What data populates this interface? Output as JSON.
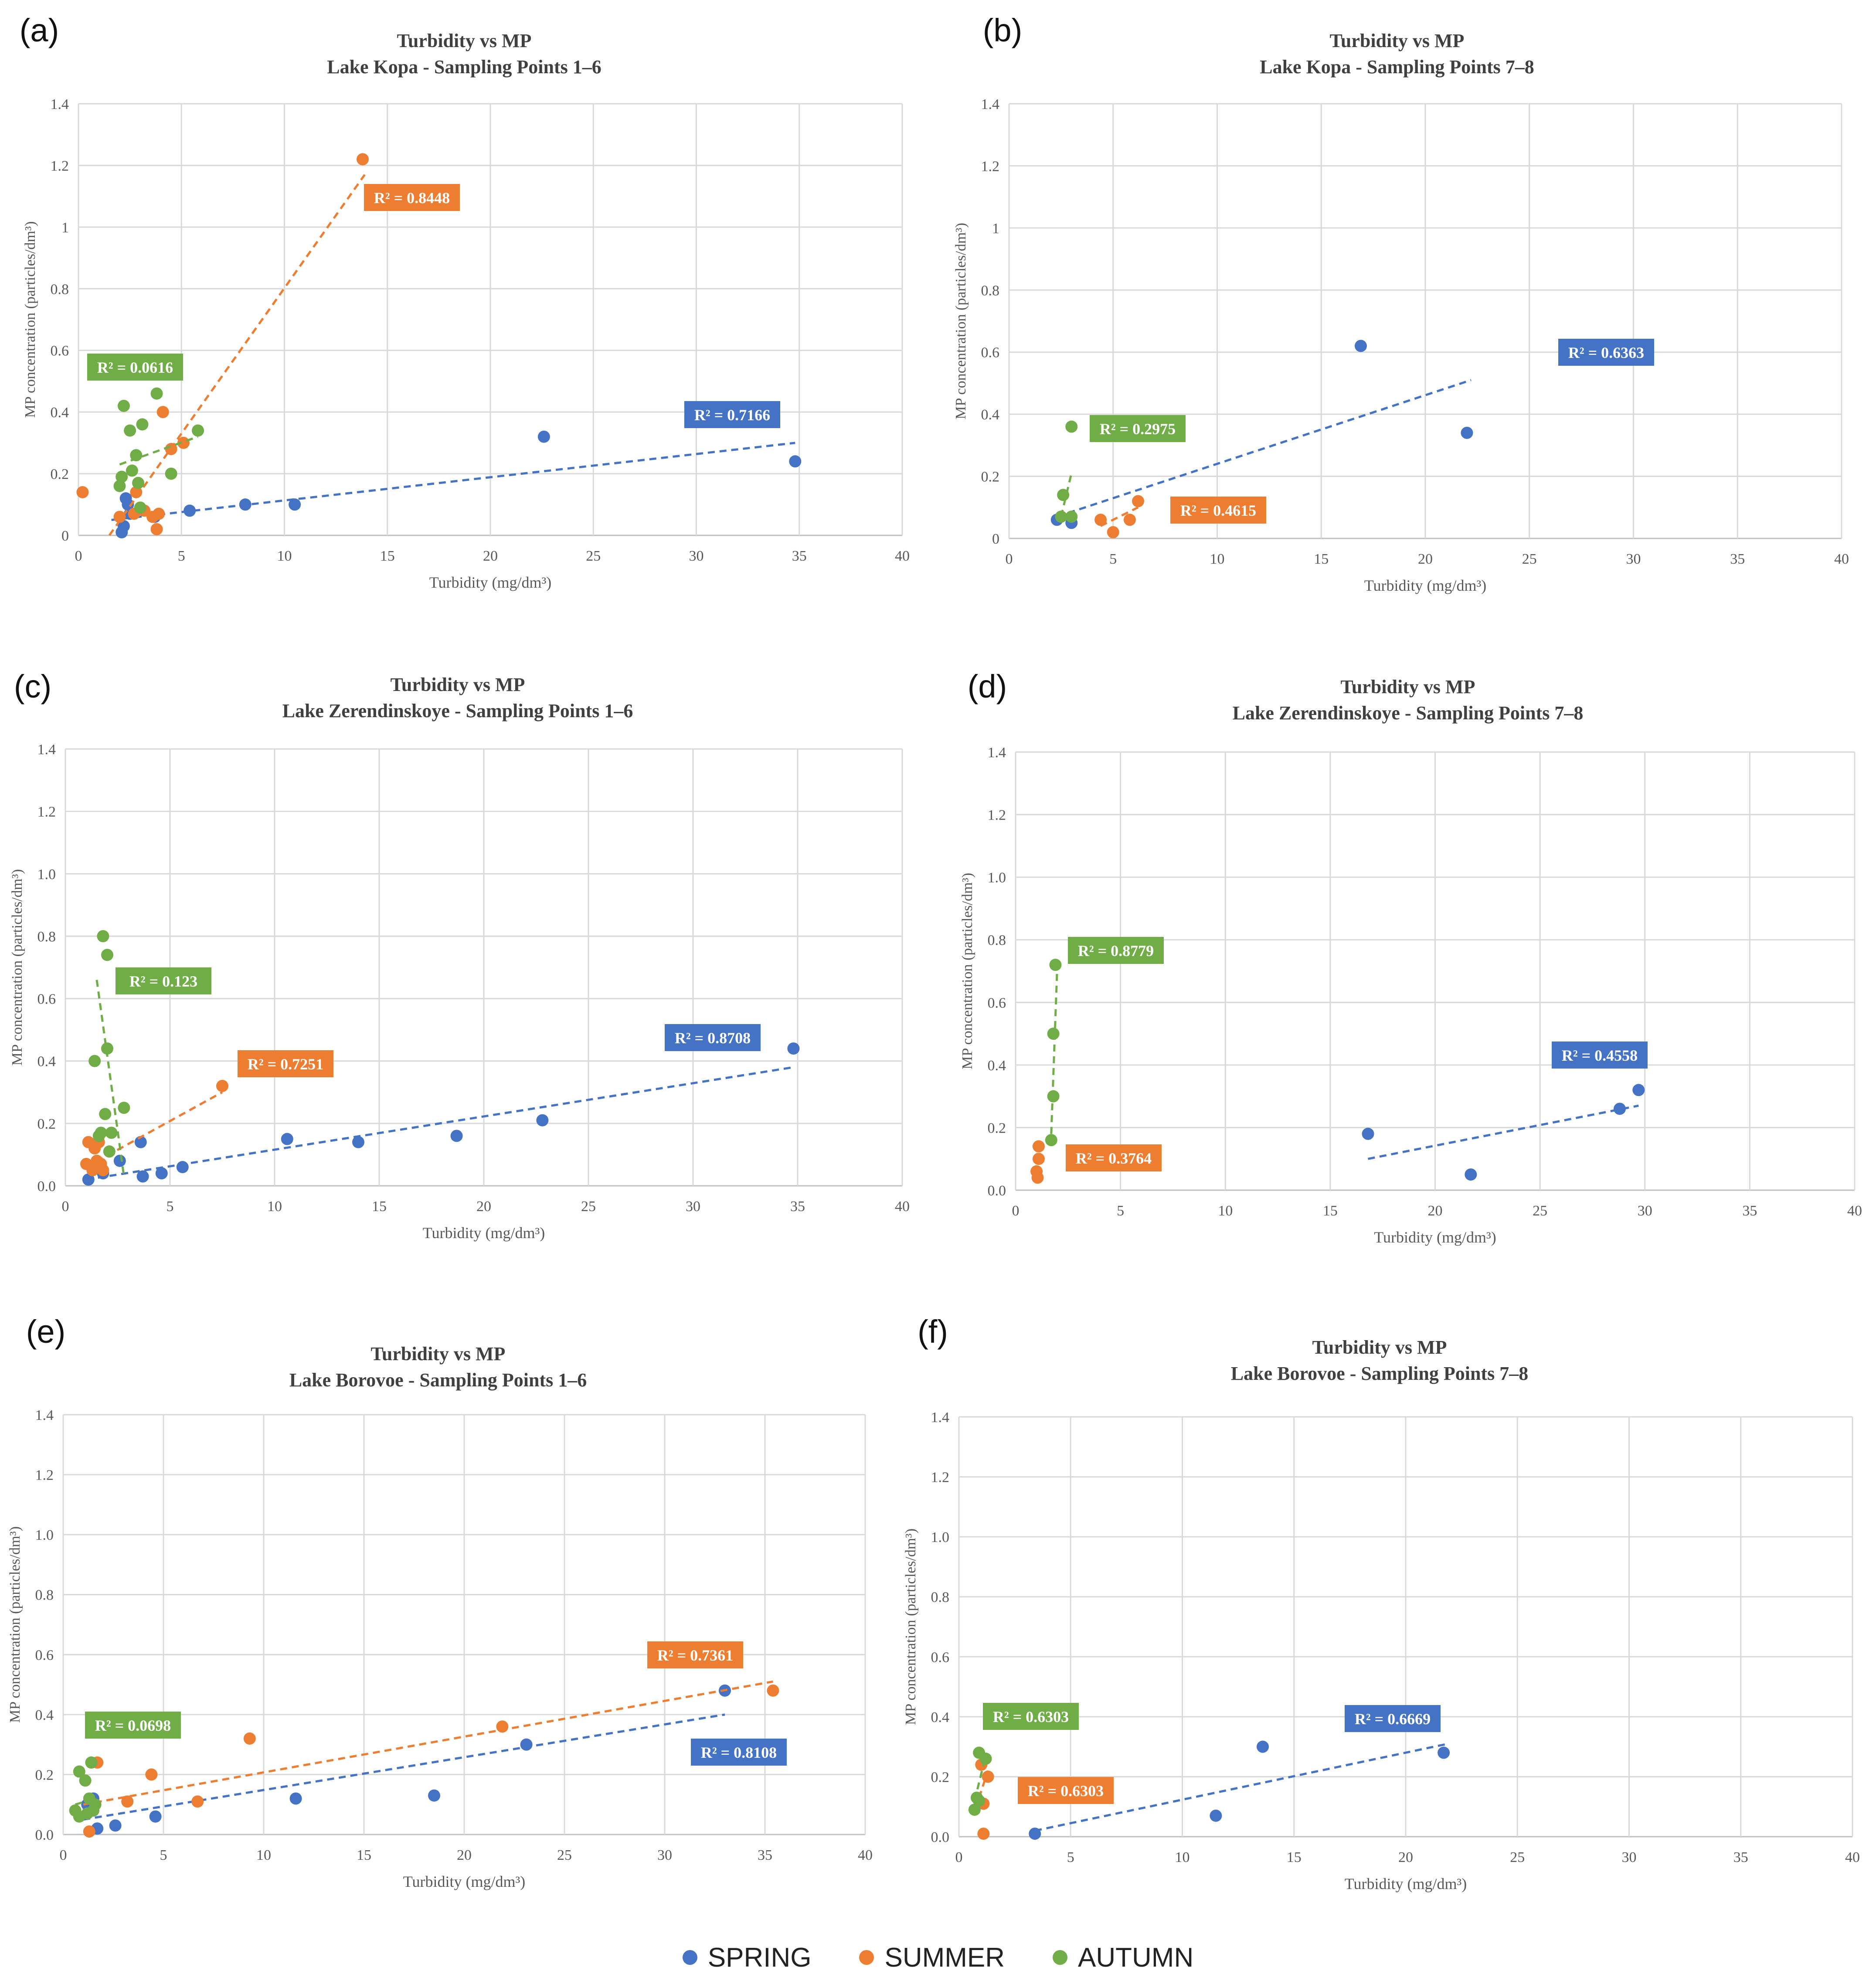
{
  "figure": {
    "legend": [
      {
        "label": "SPRING",
        "color": "#4472C4"
      },
      {
        "label": "SUMMER",
        "color": "#ED7D31"
      },
      {
        "label": "AUTUMN",
        "color": "#70AD47"
      }
    ]
  },
  "chart_data": [
    {
      "type": "scatter",
      "panel_label": "(a)",
      "title": "Turbidity vs MP",
      "subtitle": "Lake Kopa - Sampling Points 1–6",
      "xlabel": "Turbidity (mg/dm³)",
      "ylabel": "MP concentration (particles/dm³)",
      "xlim": [
        0,
        40
      ],
      "ylim": [
        0,
        1.4
      ],
      "xticks": [
        "0",
        "5",
        "10",
        "15",
        "20",
        "25",
        "30",
        "35",
        "40"
      ],
      "yticks": [
        "0",
        "0.2",
        "0.4",
        "0.6",
        "0.8",
        "1",
        "1.2",
        "1.4"
      ],
      "series": [
        {
          "name": "SPRING",
          "color": "#4472C4",
          "points": [
            [
              2.1,
              0.01
            ],
            [
              2.2,
              0.03
            ],
            [
              2.3,
              0.12
            ],
            [
              2.4,
              0.1
            ],
            [
              2.5,
              0.07
            ],
            [
              3.7,
              0.06
            ],
            [
              5.4,
              0.08
            ],
            [
              8.1,
              0.1
            ],
            [
              10.5,
              0.1
            ],
            [
              22.6,
              0.32
            ],
            [
              34.8,
              0.24
            ]
          ],
          "trend": {
            "x1": 1.6,
            "y1": 0.05,
            "x2": 34.8,
            "y2": 0.3
          },
          "r2": "R² = 0.7166"
        },
        {
          "name": "SUMMER",
          "color": "#ED7D31",
          "points": [
            [
              0.2,
              0.14
            ],
            [
              2.0,
              0.06
            ],
            [
              2.7,
              0.07
            ],
            [
              2.8,
              0.14
            ],
            [
              3.2,
              0.08
            ],
            [
              3.6,
              0.06
            ],
            [
              3.8,
              0.02
            ],
            [
              3.9,
              0.07
            ],
            [
              4.1,
              0.4
            ],
            [
              4.5,
              0.28
            ],
            [
              5.1,
              0.3
            ],
            [
              13.8,
              1.22
            ]
          ],
          "trend": {
            "x1": 1.5,
            "y1": 0.0,
            "x2": 13.9,
            "y2": 1.17
          },
          "r2": "R² = 0.8448"
        },
        {
          "name": "AUTUMN",
          "color": "#70AD47",
          "points": [
            [
              2.0,
              0.16
            ],
            [
              2.1,
              0.19
            ],
            [
              2.2,
              0.42
            ],
            [
              2.5,
              0.34
            ],
            [
              2.6,
              0.21
            ],
            [
              2.8,
              0.26
            ],
            [
              2.9,
              0.17
            ],
            [
              3.0,
              0.09
            ],
            [
              3.1,
              0.36
            ],
            [
              3.8,
              0.46
            ],
            [
              4.5,
              0.2
            ],
            [
              5.8,
              0.34
            ]
          ],
          "trend": {
            "x1": 2.0,
            "y1": 0.23,
            "x2": 5.8,
            "y2": 0.32
          },
          "r2": "R² = 0.0616"
        }
      ]
    },
    {
      "type": "scatter",
      "panel_label": "(b)",
      "title": "Turbidity vs MP",
      "subtitle": "Lake Kopa - Sampling Points 7–8",
      "xlabel": "Turbidity (mg/dm³)",
      "ylabel": "MP concentration (particles/dm³)",
      "xlim": [
        0,
        40
      ],
      "ylim": [
        0,
        1.4
      ],
      "xticks": [
        "0",
        "5",
        "10",
        "15",
        "20",
        "25",
        "30",
        "35",
        "40"
      ],
      "yticks": [
        "0",
        "0.2",
        "0.4",
        "0.6",
        "0.8",
        "1",
        "1.2",
        "1.4"
      ],
      "series": [
        {
          "name": "SPRING",
          "color": "#4472C4",
          "points": [
            [
              2.3,
              0.06
            ],
            [
              3.0,
              0.05
            ],
            [
              16.9,
              0.62
            ],
            [
              22.0,
              0.34
            ]
          ],
          "trend": {
            "x1": 2.3,
            "y1": 0.07,
            "x2": 22.2,
            "y2": 0.51
          },
          "r2": "R² = 0.6363"
        },
        {
          "name": "SUMMER",
          "color": "#ED7D31",
          "points": [
            [
              4.4,
              0.06
            ],
            [
              5.0,
              0.02
            ],
            [
              5.8,
              0.06
            ],
            [
              6.2,
              0.12
            ]
          ],
          "trend": {
            "x1": 4.4,
            "y1": 0.04,
            "x2": 6.2,
            "y2": 0.1
          },
          "r2": "R² = 0.4615"
        },
        {
          "name": "AUTUMN",
          "color": "#70AD47",
          "points": [
            [
              2.5,
              0.07
            ],
            [
              2.6,
              0.14
            ],
            [
              3.0,
              0.07
            ],
            [
              3.0,
              0.36
            ]
          ],
          "trend": {
            "x1": 2.5,
            "y1": 0.07,
            "x2": 3.0,
            "y2": 0.21
          },
          "r2": "R² = 0.2975"
        }
      ]
    },
    {
      "type": "scatter",
      "panel_label": "(c)",
      "title": "Turbidity vs MP",
      "subtitle": "Lake Zerendinskoye - Sampling Points 1–6",
      "xlabel": "Turbidity (mg/dm³)",
      "ylabel": "MP concentration (particles/dm³)",
      "xlim": [
        0,
        40
      ],
      "ylim": [
        0,
        1.4
      ],
      "xticks": [
        "0",
        "5",
        "10",
        "15",
        "20",
        "25",
        "30",
        "35",
        "40"
      ],
      "yticks": [
        "0.0",
        "0.2",
        "0.4",
        "0.6",
        "0.8",
        "1.0",
        "1.2",
        "1.4"
      ],
      "series": [
        {
          "name": "SPRING",
          "color": "#4472C4",
          "points": [
            [
              1.1,
              0.02
            ],
            [
              1.8,
              0.04
            ],
            [
              2.6,
              0.08
            ],
            [
              3.6,
              0.14
            ],
            [
              3.7,
              0.03
            ],
            [
              4.6,
              0.04
            ],
            [
              5.6,
              0.06
            ],
            [
              10.6,
              0.15
            ],
            [
              14.0,
              0.14
            ],
            [
              18.7,
              0.16
            ],
            [
              22.8,
              0.21
            ],
            [
              34.8,
              0.44
            ]
          ],
          "trend": {
            "x1": 1.0,
            "y1": 0.02,
            "x2": 34.8,
            "y2": 0.38
          },
          "r2": "R² = 0.8708"
        },
        {
          "name": "SUMMER",
          "color": "#ED7D31",
          "points": [
            [
              1.0,
              0.07
            ],
            [
              1.1,
              0.14
            ],
            [
              1.3,
              0.05
            ],
            [
              1.4,
              0.12
            ],
            [
              1.5,
              0.08
            ],
            [
              1.6,
              0.14
            ],
            [
              1.7,
              0.07
            ],
            [
              1.8,
              0.05
            ],
            [
              7.5,
              0.32
            ]
          ],
          "trend": {
            "x1": 1.0,
            "y1": 0.06,
            "x2": 7.5,
            "y2": 0.3
          },
          "r2": "R² = 0.7251"
        },
        {
          "name": "AUTUMN",
          "color": "#70AD47",
          "points": [
            [
              1.4,
              0.4
            ],
            [
              1.6,
              0.16
            ],
            [
              1.7,
              0.17
            ],
            [
              1.8,
              0.8
            ],
            [
              1.9,
              0.23
            ],
            [
              2.0,
              0.74
            ],
            [
              2.0,
              0.44
            ],
            [
              2.1,
              0.11
            ],
            [
              2.2,
              0.17
            ],
            [
              2.8,
              0.25
            ]
          ],
          "trend": {
            "x1": 1.5,
            "y1": 0.66,
            "x2": 2.8,
            "y2": 0.03
          },
          "r2": "R² = 0.123"
        }
      ]
    },
    {
      "type": "scatter",
      "panel_label": "(d)",
      "title": "Turbidity vs MP",
      "subtitle": "Lake Zerendinskoye - Sampling Points 7–8",
      "xlabel": "Turbidity (mg/dm³)",
      "ylabel": "MP concentration (particles/dm³)",
      "xlim": [
        0,
        40
      ],
      "ylim": [
        0,
        1.4
      ],
      "xticks": [
        "0",
        "5",
        "10",
        "15",
        "20",
        "25",
        "30",
        "35",
        "40"
      ],
      "yticks": [
        "0.0",
        "0.2",
        "0.4",
        "0.6",
        "0.8",
        "1.0",
        "1.2",
        "1.4"
      ],
      "series": [
        {
          "name": "SPRING",
          "color": "#4472C4",
          "points": [
            [
              16.8,
              0.18
            ],
            [
              21.7,
              0.05
            ],
            [
              28.8,
              0.26
            ],
            [
              29.7,
              0.32
            ]
          ],
          "trend": {
            "x1": 16.8,
            "y1": 0.1,
            "x2": 29.7,
            "y2": 0.27
          },
          "r2": "R² = 0.4558"
        },
        {
          "name": "SUMMER",
          "color": "#ED7D31",
          "points": [
            [
              1.0,
              0.06
            ],
            [
              1.05,
              0.04
            ],
            [
              1.1,
              0.1
            ],
            [
              1.1,
              0.14
            ]
          ],
          "trend": {
            "x1": 1.0,
            "y1": 0.05,
            "x2": 1.1,
            "y2": 0.12
          },
          "r2": "R² = 0.3764"
        },
        {
          "name": "AUTUMN",
          "color": "#70AD47",
          "points": [
            [
              1.7,
              0.16
            ],
            [
              1.8,
              0.3
            ],
            [
              1.8,
              0.5
            ],
            [
              1.9,
              0.72
            ]
          ],
          "trend": {
            "x1": 1.7,
            "y1": 0.18,
            "x2": 2.0,
            "y2": 0.74
          },
          "r2": "R² = 0.8779"
        }
      ]
    },
    {
      "type": "scatter",
      "panel_label": "(e)",
      "title": "Turbidity vs MP",
      "subtitle": "Lake Borovoe - Sampling Points 1–6",
      "xlabel": "Turbidity (mg/dm³)",
      "ylabel": "MP concentration (particles/dm³)",
      "xlim": [
        0,
        40
      ],
      "ylim": [
        0,
        1.4
      ],
      "xticks": [
        "0",
        "5",
        "10",
        "15",
        "20",
        "25",
        "30",
        "35",
        "40"
      ],
      "yticks": [
        "0.0",
        "0.2",
        "0.4",
        "0.6",
        "0.8",
        "1.0",
        "1.2",
        "1.4"
      ],
      "series": [
        {
          "name": "SPRING",
          "color": "#4472C4",
          "points": [
            [
              1.2,
              0.1
            ],
            [
              1.5,
              0.12
            ],
            [
              1.7,
              0.02
            ],
            [
              2.6,
              0.03
            ],
            [
              4.6,
              0.06
            ],
            [
              11.6,
              0.12
            ],
            [
              18.5,
              0.13
            ],
            [
              23.1,
              0.3
            ],
            [
              33.0,
              0.48
            ]
          ],
          "trend": {
            "x1": 1.0,
            "y1": 0.05,
            "x2": 33.0,
            "y2": 0.4
          },
          "r2": "R² = 0.8108"
        },
        {
          "name": "SUMMER",
          "color": "#ED7D31",
          "points": [
            [
              1.3,
              0.01
            ],
            [
              1.7,
              0.24
            ],
            [
              3.2,
              0.11
            ],
            [
              4.4,
              0.2
            ],
            [
              6.7,
              0.11
            ],
            [
              9.3,
              0.32
            ],
            [
              21.9,
              0.36
            ],
            [
              35.4,
              0.48
            ]
          ],
          "trend": {
            "x1": 1.0,
            "y1": 0.1,
            "x2": 35.4,
            "y2": 0.51
          },
          "r2": "R² = 0.7361"
        },
        {
          "name": "AUTUMN",
          "color": "#70AD47",
          "points": [
            [
              0.6,
              0.08
            ],
            [
              0.8,
              0.06
            ],
            [
              0.8,
              0.21
            ],
            [
              1.1,
              0.18
            ],
            [
              1.2,
              0.07
            ],
            [
              1.3,
              0.12
            ],
            [
              1.4,
              0.24
            ],
            [
              1.5,
              0.08
            ],
            [
              1.6,
              0.1
            ]
          ],
          "trend": {
            "x1": 0.6,
            "y1": 0.1,
            "x2": 1.6,
            "y2": 0.12
          },
          "r2": "R² = 0.0698"
        }
      ]
    },
    {
      "type": "scatter",
      "panel_label": "(f)",
      "title": "Turbidity vs MP",
      "subtitle": "Lake Borovoe - Sampling Points 7–8",
      "xlabel": "Turbidity (mg/dm³)",
      "ylabel": "MP concentration (particles/dm³)",
      "xlim": [
        0,
        40
      ],
      "ylim": [
        0,
        1.4
      ],
      "xticks": [
        "0",
        "5",
        "10",
        "15",
        "20",
        "25",
        "30",
        "35",
        "40"
      ],
      "yticks": [
        "0.0",
        "0.2",
        "0.4",
        "0.6",
        "0.8",
        "1.0",
        "1.2",
        "1.4"
      ],
      "series": [
        {
          "name": "SPRING",
          "color": "#4472C4",
          "points": [
            [
              3.4,
              0.01
            ],
            [
              11.5,
              0.07
            ],
            [
              13.6,
              0.3
            ],
            [
              21.7,
              0.28
            ]
          ],
          "trend": {
            "x1": 3.4,
            "y1": 0.02,
            "x2": 21.9,
            "y2": 0.31
          },
          "r2": "R² = 0.6669"
        },
        {
          "name": "SUMMER",
          "color": "#ED7D31",
          "points": [
            [
              1.0,
              0.24
            ],
            [
              1.1,
              0.11
            ],
            [
              1.1,
              0.01
            ],
            [
              1.3,
              0.2
            ]
          ],
          "trend": {
            "x1": 0.9,
            "y1": 0.13,
            "x2": 1.3,
            "y2": 0.22
          },
          "r2": "R² = 0.6303"
        },
        {
          "name": "AUTUMN",
          "color": "#70AD47",
          "points": [
            [
              0.7,
              0.09
            ],
            [
              0.8,
              0.13
            ],
            [
              0.9,
              0.12
            ],
            [
              0.9,
              0.28
            ],
            [
              1.2,
              0.26
            ]
          ],
          "trend": {
            "x1": 0.7,
            "y1": 0.12,
            "x2": 1.2,
            "y2": 0.27
          },
          "r2": "R² = 0.6303"
        }
      ]
    }
  ]
}
